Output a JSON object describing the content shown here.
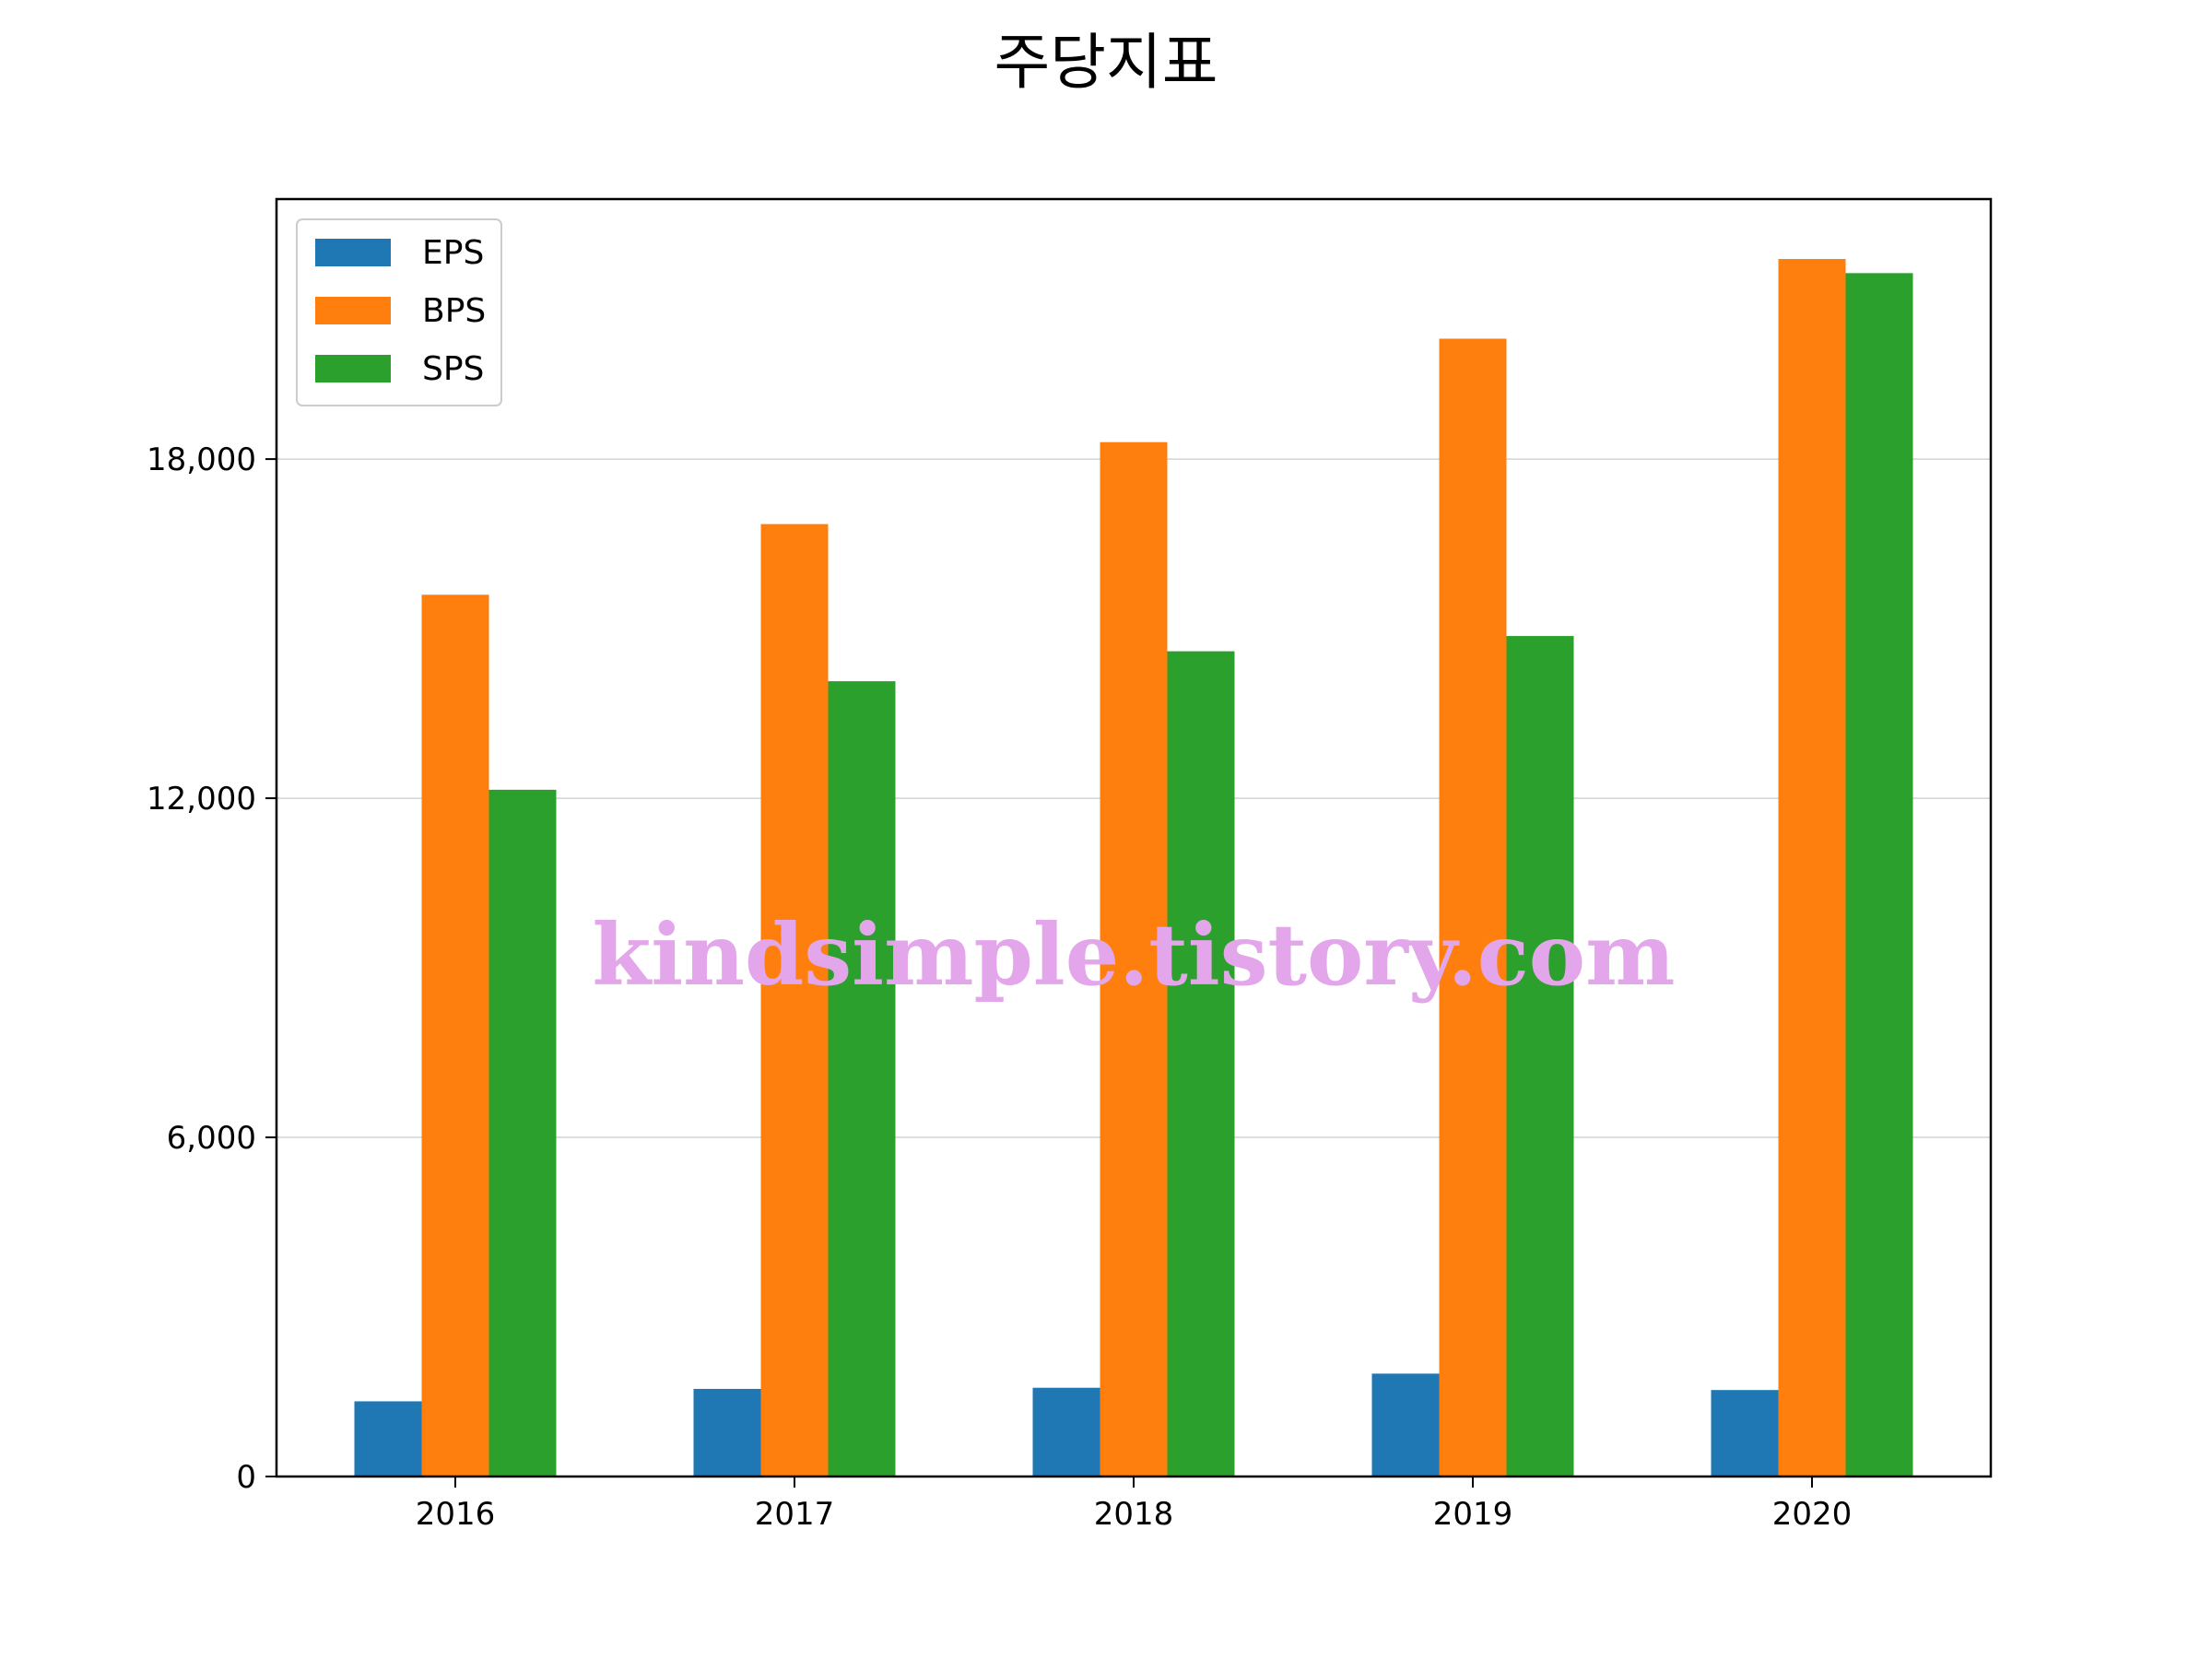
{
  "chart_data": {
    "type": "bar",
    "title": "주당지표",
    "categories": [
      "2016",
      "2017",
      "2018",
      "2019",
      "2020"
    ],
    "series": [
      {
        "name": "EPS",
        "color": "#1f77b4",
        "values": [
          1330,
          1550,
          1570,
          1820,
          1530
        ]
      },
      {
        "name": "BPS",
        "color": "#ff7f0e",
        "values": [
          15600,
          16850,
          18300,
          20130,
          21540
        ]
      },
      {
        "name": "SPS",
        "color": "#2ca02c",
        "values": [
          12150,
          14070,
          14600,
          14870,
          21290
        ]
      }
    ],
    "y_ticks": [
      0,
      6000,
      12000,
      18000
    ],
    "y_tick_labels": [
      "0",
      "6,000",
      "12,000",
      "18,000"
    ],
    "ylim": [
      0,
      22600
    ],
    "grid": "horizontal",
    "legend_position": "top-left",
    "watermark": "kindsimple.tistory.com"
  }
}
